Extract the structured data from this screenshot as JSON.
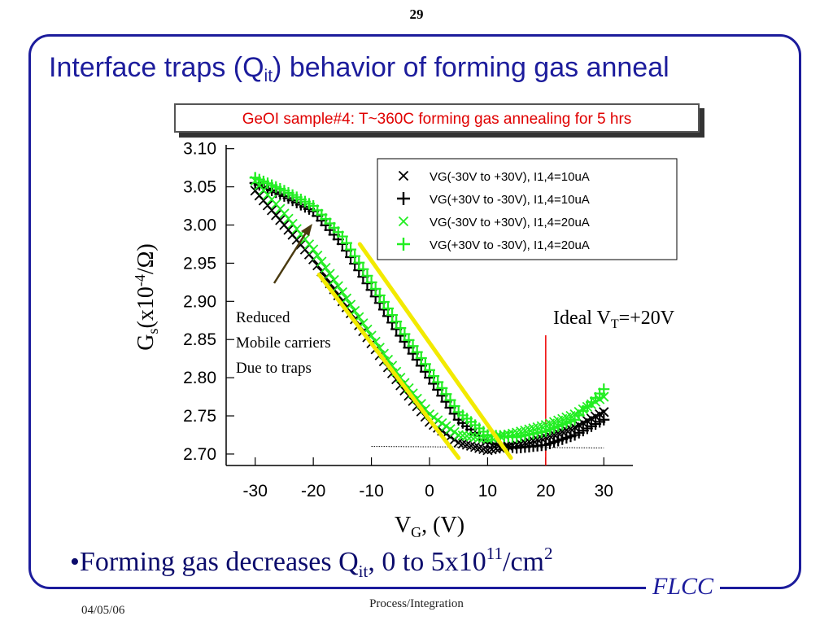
{
  "slide": {
    "page_number": "29",
    "title_main": "Interface traps (Q",
    "title_sub": "it",
    "title_rest": ")  behavior of forming gas anneal",
    "subtitle": "GeOI sample#4: T~360C forming gas annealing for 5 hrs",
    "bullet_main": "•Forming gas decreases Q",
    "bullet_sub": "it",
    "bullet_mid": ",   0 to 5x10",
    "bullet_sup1": "11",
    "bullet_mid2": "/cm",
    "bullet_sup2": "2",
    "logo": "FLCC",
    "date": "04/05/06",
    "footer": "Process/Integration"
  },
  "colors": {
    "frame": "#1c1c9c",
    "title": "#1c1c9c",
    "subtitle": "#e00000",
    "series_black": "#000000",
    "series_green": "#22ee22",
    "fit_line": "#f2ea00",
    "marker_line": "#ee0000",
    "arrow": "#4a3a10"
  },
  "chart_data": {
    "type": "scatter",
    "xlabel_main": "V",
    "xlabel_sub": "G",
    "xlabel_rest": ", (V)",
    "ylabel_main": "G",
    "ylabel_sub": "s",
    "ylabel_mid": "(x10",
    "ylabel_sup": "-4",
    "ylabel_rest": "/Ω)",
    "xlim": [
      -35,
      35
    ],
    "ylim": [
      2.685,
      3.105
    ],
    "x_ticks": [
      "-30",
      "-20",
      "-10",
      "0",
      "10",
      "20",
      "30"
    ],
    "y_ticks": [
      "3.10",
      "3.05",
      "3.00",
      "2.95",
      "2.90",
      "2.85",
      "2.80",
      "2.75",
      "2.70"
    ],
    "legend_position": "top-right",
    "series": [
      {
        "name": "VG(-30V to +30V), I1,4=10uA",
        "marker": "x",
        "color": "#000000",
        "points": [
          [
            -30,
            3.045
          ],
          [
            -25,
            3.0
          ],
          [
            -20,
            2.955
          ],
          [
            -15,
            2.9
          ],
          [
            -10,
            2.845
          ],
          [
            -5,
            2.79
          ],
          [
            0,
            2.742
          ],
          [
            5,
            2.715
          ],
          [
            10,
            2.705
          ],
          [
            15,
            2.712
          ],
          [
            20,
            2.722
          ],
          [
            25,
            2.735
          ],
          [
            30,
            2.755
          ]
        ]
      },
      {
        "name": "VG(+30V to -30V), I1,4=10uA",
        "marker": "+",
        "color": "#000000",
        "points": [
          [
            30,
            2.745
          ],
          [
            25,
            2.725
          ],
          [
            20,
            2.712
          ],
          [
            15,
            2.708
          ],
          [
            10,
            2.715
          ],
          [
            5,
            2.745
          ],
          [
            0,
            2.8
          ],
          [
            -5,
            2.855
          ],
          [
            -10,
            2.915
          ],
          [
            -15,
            2.975
          ],
          [
            -20,
            3.018
          ],
          [
            -25,
            3.038
          ],
          [
            -30,
            3.055
          ]
        ]
      },
      {
        "name": "VG(-30V to +30V), I1,4=20uA",
        "marker": "x",
        "color": "#22ee22",
        "points": [
          [
            -30,
            3.058
          ],
          [
            -25,
            3.015
          ],
          [
            -20,
            2.968
          ],
          [
            -15,
            2.912
          ],
          [
            -10,
            2.855
          ],
          [
            -5,
            2.8
          ],
          [
            0,
            2.752
          ],
          [
            5,
            2.725
          ],
          [
            10,
            2.72
          ],
          [
            15,
            2.728
          ],
          [
            20,
            2.738
          ],
          [
            25,
            2.752
          ],
          [
            30,
            2.775
          ]
        ]
      },
      {
        "name": "VG(+30V to -30V), I1,4=20uA",
        "marker": "+",
        "color": "#22ee22",
        "points": [
          [
            30,
            2.785
          ],
          [
            25,
            2.745
          ],
          [
            20,
            2.73
          ],
          [
            15,
            2.722
          ],
          [
            10,
            2.725
          ],
          [
            5,
            2.755
          ],
          [
            0,
            2.81
          ],
          [
            -5,
            2.865
          ],
          [
            -10,
            2.925
          ],
          [
            -15,
            2.985
          ],
          [
            -20,
            3.025
          ],
          [
            -25,
            3.045
          ],
          [
            -30,
            3.062
          ]
        ]
      }
    ],
    "fit_lines": [
      {
        "from": [
          -19,
          2.935
        ],
        "to": [
          5,
          2.695
        ]
      },
      {
        "from": [
          -12,
          2.975
        ],
        "to": [
          14,
          2.695
        ]
      }
    ],
    "baseline": {
      "from": [
        -10,
        2.71
      ],
      "to": [
        30,
        2.708
      ]
    },
    "vertical_marker_x": 20,
    "annotations": {
      "ideal_vt_main": "Ideal V",
      "ideal_vt_sub": "T",
      "ideal_vt_rest": "=+20V",
      "reduced_lines": [
        "Reduced",
        "Mobile carriers",
        "Due to traps"
      ]
    }
  }
}
